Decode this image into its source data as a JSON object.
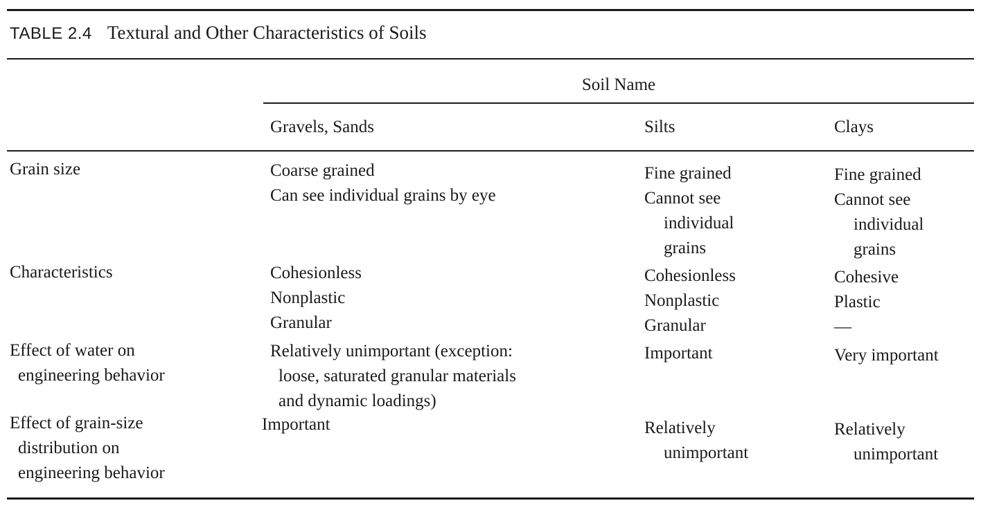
{
  "caption": {
    "label": "TABLE 2.4",
    "title": "Textural and Other Characteristics of Soils"
  },
  "group_header": "Soil Name",
  "columns": [
    "Gravels, Sands",
    "Silts",
    "Clays"
  ],
  "rows": [
    {
      "label": [
        "Grain size"
      ],
      "gravels_sands": [
        "Coarse grained",
        "Can see individual grains by eye"
      ],
      "silts": [
        "Fine grained",
        "Cannot see",
        "individual",
        "grains"
      ],
      "clays": [
        "Fine grained",
        "Cannot see",
        "individual",
        "grains"
      ]
    },
    {
      "label": [
        "Characteristics"
      ],
      "gravels_sands": [
        "Cohesionless",
        "Nonplastic",
        "Granular"
      ],
      "silts": [
        "Cohesionless",
        "Nonplastic",
        "Granular"
      ],
      "clays": [
        "Cohesive",
        "Plastic",
        "—"
      ]
    },
    {
      "label": [
        "Effect of water on",
        "engineering behavior"
      ],
      "gravels_sands": [
        "Relatively unimportant (exception:",
        "loose, saturated granular materials",
        "and dynamic loadings)"
      ],
      "silts": [
        "Important"
      ],
      "clays": [
        "Very important"
      ]
    },
    {
      "label": [
        "Effect of grain-size",
        "distribution on",
        "engineering behavior"
      ],
      "gravels_sands": [
        "Important"
      ],
      "silts": [
        "Relatively",
        "unimportant"
      ],
      "clays": [
        "Relatively",
        "unimportant"
      ]
    }
  ]
}
